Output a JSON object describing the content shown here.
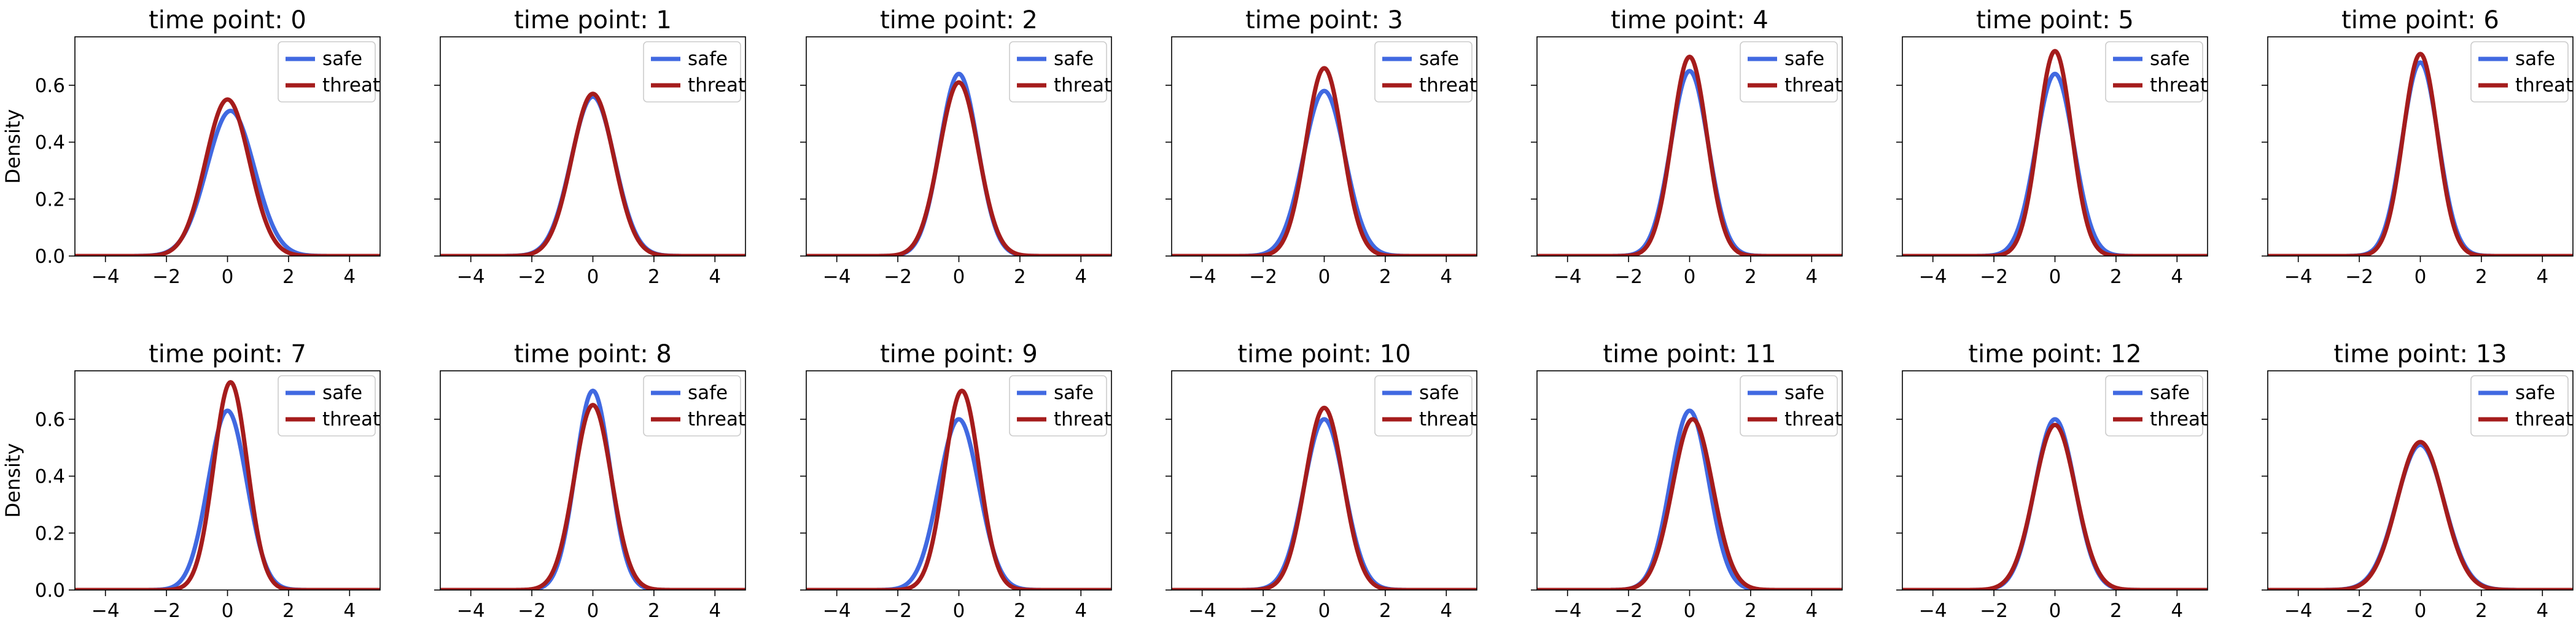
{
  "colors": {
    "safe": "#4169E1",
    "threat": "#A51C1C",
    "axis": "#000000",
    "legend_border": "#cccccc"
  },
  "chart_data": {
    "type": "line",
    "kind": "kde-density-small-multiples",
    "grid": false,
    "legend_position": "top-right",
    "rows": 2,
    "cols": 7,
    "ylabel": "Density",
    "xlim": [
      -5,
      5
    ],
    "ylim": [
      0,
      0.77
    ],
    "xticks": [
      -4,
      -2,
      0,
      2,
      4
    ],
    "yticks": [
      0.0,
      0.2,
      0.4,
      0.6
    ],
    "xtick_labels": [
      "−4",
      "−2",
      "0",
      "2",
      "4"
    ],
    "ytick_labels": [
      "0.0",
      "0.2",
      "0.4",
      "0.6"
    ],
    "legend": [
      "safe",
      "threat"
    ],
    "panels": [
      {
        "title": "time point: 0",
        "safe": {
          "peak": 0.51,
          "mu": 0.1,
          "sigma": 0.78
        },
        "threat": {
          "peak": 0.55,
          "mu": 0.0,
          "sigma": 0.72
        }
      },
      {
        "title": "time point: 1",
        "safe": {
          "peak": 0.56,
          "mu": 0.0,
          "sigma": 0.71
        },
        "threat": {
          "peak": 0.57,
          "mu": 0.0,
          "sigma": 0.69
        }
      },
      {
        "title": "time point: 2",
        "safe": {
          "peak": 0.64,
          "mu": 0.0,
          "sigma": 0.62
        },
        "threat": {
          "peak": 0.61,
          "mu": 0.0,
          "sigma": 0.64
        }
      },
      {
        "title": "time point: 3",
        "safe": {
          "peak": 0.58,
          "mu": 0.0,
          "sigma": 0.68
        },
        "threat": {
          "peak": 0.66,
          "mu": 0.0,
          "sigma": 0.6
        }
      },
      {
        "title": "time point: 4",
        "safe": {
          "peak": 0.65,
          "mu": 0.0,
          "sigma": 0.61
        },
        "threat": {
          "peak": 0.7,
          "mu": 0.0,
          "sigma": 0.57
        }
      },
      {
        "title": "time point: 5",
        "safe": {
          "peak": 0.64,
          "mu": 0.0,
          "sigma": 0.62
        },
        "threat": {
          "peak": 0.72,
          "mu": 0.0,
          "sigma": 0.55
        }
      },
      {
        "title": "time point: 6",
        "safe": {
          "peak": 0.68,
          "mu": 0.0,
          "sigma": 0.59
        },
        "threat": {
          "peak": 0.71,
          "mu": 0.0,
          "sigma": 0.56
        }
      },
      {
        "title": "time point: 7",
        "safe": {
          "peak": 0.63,
          "mu": 0.0,
          "sigma": 0.63
        },
        "threat": {
          "peak": 0.73,
          "mu": 0.1,
          "sigma": 0.55
        }
      },
      {
        "title": "time point: 8",
        "safe": {
          "peak": 0.7,
          "mu": 0.0,
          "sigma": 0.57
        },
        "threat": {
          "peak": 0.65,
          "mu": 0.0,
          "sigma": 0.61
        }
      },
      {
        "title": "time point: 9",
        "safe": {
          "peak": 0.6,
          "mu": 0.0,
          "sigma": 0.66
        },
        "threat": {
          "peak": 0.7,
          "mu": 0.1,
          "sigma": 0.57
        }
      },
      {
        "title": "time point: 10",
        "safe": {
          "peak": 0.6,
          "mu": 0.0,
          "sigma": 0.66
        },
        "threat": {
          "peak": 0.64,
          "mu": 0.0,
          "sigma": 0.62
        }
      },
      {
        "title": "time point: 11",
        "safe": {
          "peak": 0.63,
          "mu": 0.0,
          "sigma": 0.63
        },
        "threat": {
          "peak": 0.6,
          "mu": 0.1,
          "sigma": 0.66
        }
      },
      {
        "title": "time point: 12",
        "safe": {
          "peak": 0.6,
          "mu": 0.0,
          "sigma": 0.66
        },
        "threat": {
          "peak": 0.58,
          "mu": 0.0,
          "sigma": 0.68
        }
      },
      {
        "title": "time point: 13",
        "safe": {
          "peak": 0.51,
          "mu": 0.0,
          "sigma": 0.78
        },
        "threat": {
          "peak": 0.52,
          "mu": 0.0,
          "sigma": 0.76
        }
      }
    ]
  }
}
